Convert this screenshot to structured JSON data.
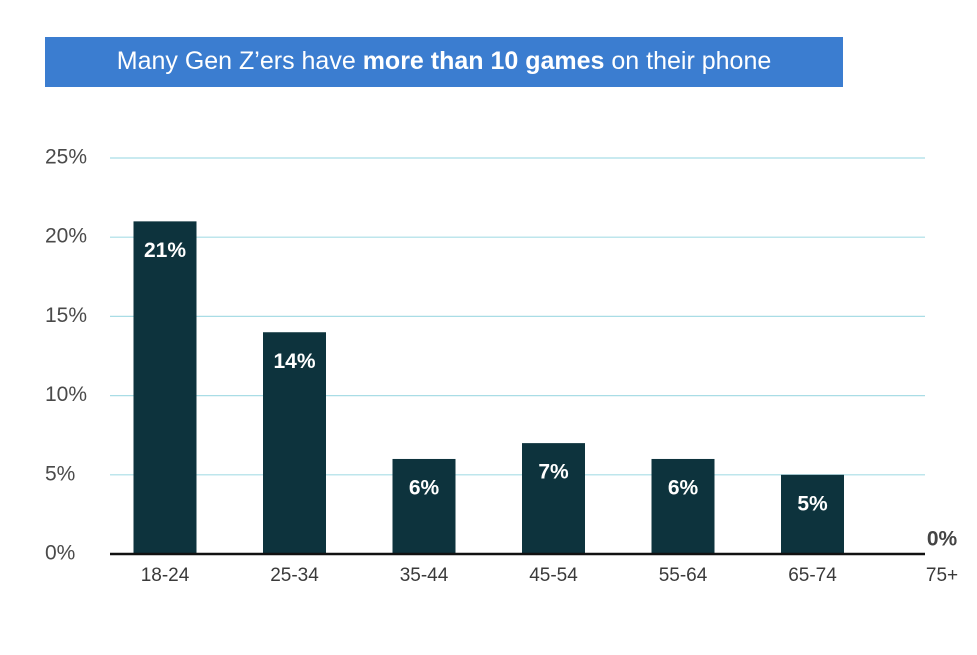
{
  "chart_data": {
    "type": "bar",
    "title": [
      {
        "text": "Many Gen Z’ers have ",
        "bold": false
      },
      {
        "text": "more than 10 games",
        "bold": true
      },
      {
        "text": " on their phone",
        "bold": false
      }
    ],
    "title_color": "#3b7dd0",
    "categories": [
      "18-24",
      "25-34",
      "35-44",
      "45-54",
      "55-64",
      "65-74",
      "75+"
    ],
    "values": [
      21,
      14,
      6,
      7,
      6,
      5,
      0
    ],
    "value_labels": [
      "21%",
      "14%",
      "6%",
      "7%",
      "6%",
      "5%",
      "0%"
    ],
    "color": "#0d333d",
    "ylim": [
      0,
      25
    ],
    "yticks": [
      {
        "value": 0,
        "label": "0%"
      },
      {
        "value": 5,
        "label": "5%"
      },
      {
        "value": 10,
        "label": "10%"
      },
      {
        "value": 15,
        "label": "15%"
      },
      {
        "value": 20,
        "label": "20%"
      },
      {
        "value": 25,
        "label": "25%"
      }
    ],
    "grid": true,
    "grid_color": "#a9dde6"
  }
}
